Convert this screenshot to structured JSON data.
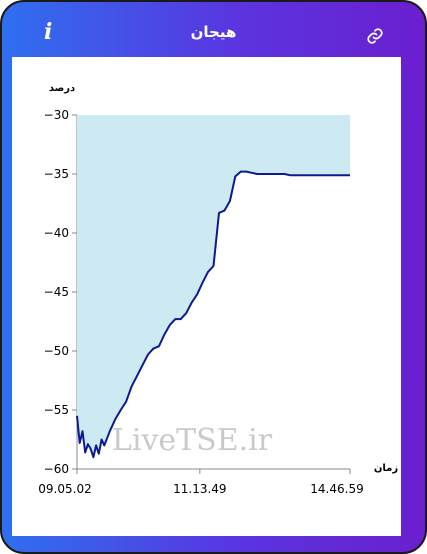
{
  "header": {
    "title": "هیجان",
    "info_icon": "info-icon",
    "link_icon": "link-icon"
  },
  "colors": {
    "gradient_start": "#2f6ff0",
    "gradient_end": "#6b1fcf",
    "line": "#0c1a8f",
    "fill": "#cde9f2"
  },
  "watermark": "LiveTSE.ir",
  "chart_data": {
    "type": "area",
    "ylabel": "درصد",
    "xlabel": "زمان",
    "ylim": [
      -60,
      -30
    ],
    "yticks": [
      -30,
      -35,
      -40,
      -45,
      -50,
      -55,
      -60
    ],
    "xticks": [
      "09.05.02",
      "11.13.49",
      "14.46.59"
    ],
    "tick_labels": [
      "−30",
      "−35",
      "−40",
      "−45",
      "−50",
      "−55",
      "−60"
    ],
    "x": [
      0,
      1,
      2,
      3,
      4,
      5,
      6,
      7,
      8,
      9,
      10,
      12,
      14,
      16,
      18,
      20,
      22,
      24,
      26,
      28,
      30,
      32,
      34,
      36,
      38,
      40,
      42,
      44,
      46,
      48,
      50,
      52,
      54,
      56,
      58,
      60,
      62,
      64,
      66,
      68,
      70,
      72,
      74,
      76,
      78,
      80,
      82,
      84,
      86,
      88,
      90,
      92,
      94,
      96,
      98,
      100
    ],
    "values": [
      -55.5,
      -57.8,
      -56.8,
      -58.6,
      -57.9,
      -58.3,
      -59.0,
      -58.0,
      -58.7,
      -57.5,
      -58.0,
      -56.8,
      -55.8,
      -55.0,
      -54.3,
      -53.0,
      -52.1,
      -51.2,
      -50.3,
      -49.8,
      -49.6,
      -48.6,
      -47.8,
      -47.3,
      -47.3,
      -46.8,
      -45.9,
      -45.2,
      -44.2,
      -43.3,
      -42.8,
      -38.3,
      -38.1,
      -37.3,
      -35.2,
      -34.8,
      -34.8,
      -34.9,
      -35.0,
      -35.0,
      -35.0,
      -35.0,
      -35.0,
      -35.0,
      -35.1,
      -35.1,
      -35.1,
      -35.1,
      -35.1,
      -35.1,
      -35.1,
      -35.1,
      -35.1,
      -35.1,
      -35.1,
      -35.1
    ],
    "tick_positions": [
      0,
      45,
      100
    ],
    "grid": false
  }
}
